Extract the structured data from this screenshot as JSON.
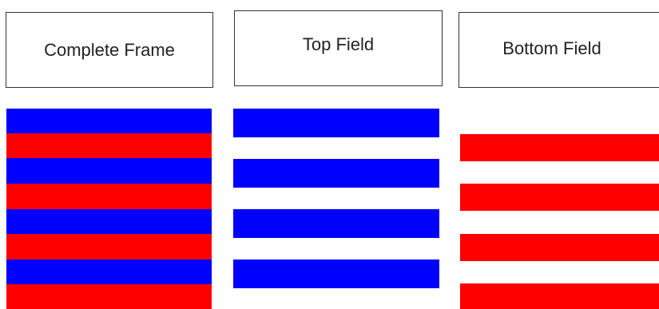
{
  "labels": {
    "complete": "Complete Frame",
    "top": "Top Field",
    "bottom": "Bottom Field"
  },
  "colors": {
    "blue": "#0000ff",
    "red": "#ff0000",
    "background": "#ffffff",
    "box_border": "#333333"
  },
  "panels": {
    "complete": {
      "line_count": 8,
      "pattern": [
        "blue",
        "red",
        "blue",
        "red",
        "blue",
        "red",
        "blue",
        "red"
      ]
    },
    "top": {
      "line_count": 4,
      "pattern": [
        "blue",
        "blue",
        "blue",
        "blue"
      ]
    },
    "bottom": {
      "line_count": 4,
      "pattern": [
        "red",
        "red",
        "red",
        "red"
      ]
    }
  }
}
